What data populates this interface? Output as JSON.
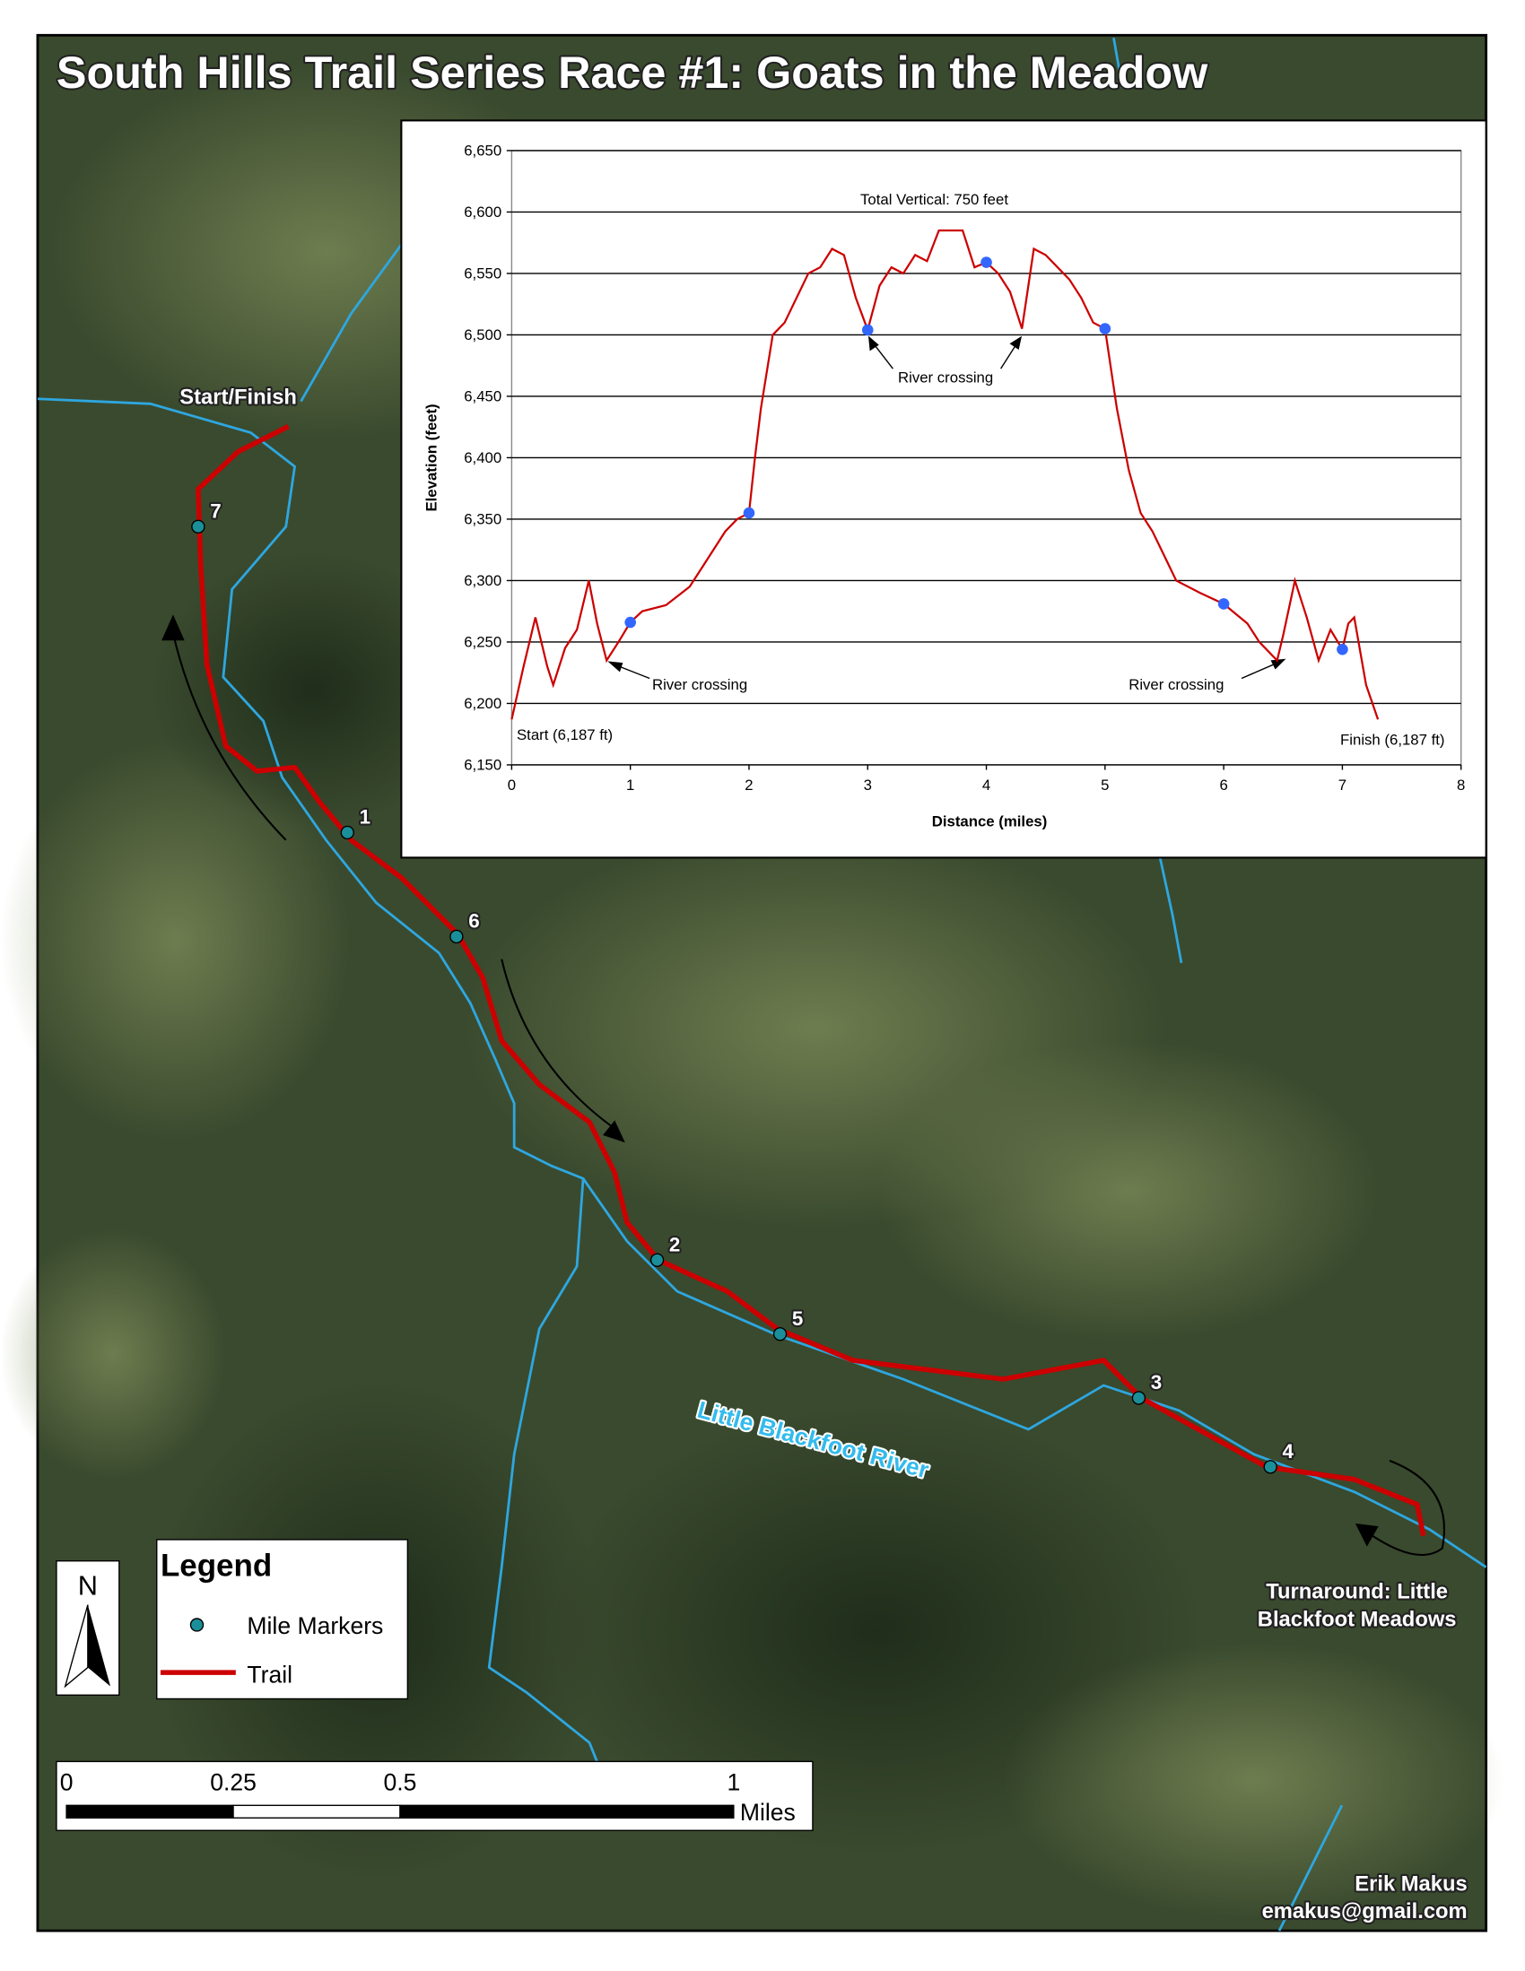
{
  "title": "South Hills Trail Series Race #1: Goats in the Meadow",
  "map_labels": {
    "start_finish": "Start/Finish",
    "river": "Little Blackfoot River",
    "turnaround": [
      "Turnaround: Little",
      "Blackfoot Meadows"
    ],
    "mile_markers": [
      1,
      2,
      3,
      4,
      5,
      6,
      7
    ]
  },
  "legend": {
    "title": "Legend",
    "items": [
      "Mile Markers",
      "Trail"
    ],
    "north": "N"
  },
  "scale_bar": {
    "ticks": [
      0,
      0.25,
      0.5,
      1
    ],
    "unit": "Miles"
  },
  "credit": [
    "Erik Makus",
    "emakus@gmail.com"
  ],
  "chart_data": {
    "type": "line",
    "xlabel": "Distance (miles)",
    "ylabel": "Elevation (feet)",
    "annotations": [
      "Total Vertical: 750 feet",
      "River crossing",
      "River crossing",
      "River crossing",
      "Start (6,187 ft)",
      "Finish (6,187 ft)"
    ],
    "xlim": [
      0,
      8
    ],
    "xticks": [
      0,
      1,
      2,
      3,
      4,
      5,
      6,
      7,
      8
    ],
    "ylim": [
      6150,
      6650
    ],
    "yticks": [
      {
        "value": 6150,
        "label": "6,150"
      },
      {
        "value": 6200,
        "label": "6,200"
      },
      {
        "value": 6250,
        "label": "6,250"
      },
      {
        "value": 6300,
        "label": "6,300"
      },
      {
        "value": 6350,
        "label": "6,350"
      },
      {
        "value": 6400,
        "label": "6,400"
      },
      {
        "value": 6450,
        "label": "6,450"
      },
      {
        "value": 6500,
        "label": "6,500"
      },
      {
        "value": 6550,
        "label": "6,550"
      },
      {
        "value": 6600,
        "label": "6,600"
      },
      {
        "value": 6650,
        "label": "6,650"
      }
    ],
    "grid": true,
    "series": [
      {
        "color": "#cc0000",
        "x": [
          0,
          0.1,
          0.2,
          0.3,
          0.35,
          0.45,
          0.55,
          0.65,
          0.72,
          0.8,
          0.9,
          1,
          1.1,
          1.3,
          1.5,
          1.6,
          1.8,
          1.9,
          2,
          2.05,
          2.1,
          2.2,
          2.3,
          2.4,
          2.5,
          2.6,
          2.7,
          2.8,
          2.9,
          3,
          3.1,
          3.2,
          3.3,
          3.4,
          3.5,
          3.6,
          3.8,
          3.9,
          4,
          4.1,
          4.2,
          4.3,
          4.4,
          4.5,
          4.6,
          4.7,
          4.8,
          4.9,
          5,
          5.1,
          5.2,
          5.3,
          5.4,
          5.5,
          5.6,
          5.8,
          6,
          6.2,
          6.3,
          6.45,
          6.5,
          6.6,
          6.7,
          6.8,
          6.9,
          7,
          7.05,
          7.1,
          7.2,
          7.3
        ],
        "values": [
          6187,
          6230,
          6270,
          6230,
          6215,
          6245,
          6260,
          6300,
          6265,
          6235,
          6250,
          6266,
          6275,
          6280,
          6295,
          6310,
          6340,
          6350,
          6355,
          6400,
          6440,
          6500,
          6510,
          6530,
          6550,
          6555,
          6570,
          6565,
          6530,
          6504,
          6540,
          6555,
          6550,
          6565,
          6560,
          6585,
          6585,
          6555,
          6559,
          6550,
          6535,
          6505,
          6570,
          6565,
          6555,
          6545,
          6530,
          6510,
          6505,
          6440,
          6390,
          6355,
          6340,
          6320,
          6300,
          6290,
          6281,
          6265,
          6250,
          6235,
          6255,
          6300,
          6270,
          6235,
          6260,
          6244,
          6265,
          6270,
          6215,
          6187
        ]
      },
      {
        "type": "scatter",
        "color": "#3366ff",
        "x": [
          1,
          2,
          3,
          4,
          5,
          6,
          7
        ],
        "values": [
          6266,
          6355,
          6504,
          6559,
          6505,
          6281,
          6244
        ]
      }
    ]
  }
}
